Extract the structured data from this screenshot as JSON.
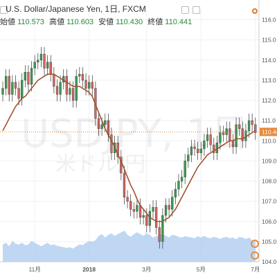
{
  "header": {
    "title": "U.S. Dollar/Japanese Yen, 1日, FXCM",
    "ohlc": [
      {
        "key": "始値",
        "value": "110.573"
      },
      {
        "key": "高値",
        "value": "110.603"
      },
      {
        "key": "安値",
        "value": "110.430"
      },
      {
        "key": "終値",
        "value": "110.441"
      }
    ]
  },
  "watermark": {
    "symbol": "USDJPY, 1日",
    "name": "米ドル/円"
  },
  "colors": {
    "up": "#3c9a52",
    "down": "#d46460",
    "ma": "#a0522d",
    "volume": "#aac9ef",
    "last": "#e58a3a"
  },
  "chart_data": {
    "type": "candlestick",
    "y_range": [
      104,
      116.5
    ],
    "y_ticks": [
      "116.0",
      "115.0",
      "114.0",
      "113.0",
      "112.0",
      "111.0",
      "110.0",
      "109.0",
      "108.0",
      "107.0",
      "106.0",
      "105.0",
      "104.0"
    ],
    "x_ticks": [
      {
        "label": "11月",
        "i": 10
      },
      {
        "label": "2018",
        "i": 27,
        "bold": true
      },
      {
        "label": "3月",
        "i": 45
      },
      {
        "label": "5月",
        "i": 62
      },
      {
        "label": "7月",
        "i": 79
      }
    ],
    "last_price": "110.441",
    "close": [
      112.6,
      113.2,
      112.3,
      112.9,
      112.6,
      112.1,
      113.0,
      113.4,
      112.8,
      113.6,
      113.9,
      114.0,
      114.3,
      113.6,
      113.9,
      113.3,
      112.7,
      112.3,
      112.9,
      113.2,
      112.3,
      112.6,
      112.0,
      113.2,
      113.3,
      113.0,
      112.6,
      112.9,
      112.6,
      111.1,
      110.6,
      110.8,
      111.0,
      110.3,
      109.4,
      109.9,
      109.2,
      108.4,
      107.2,
      107.0,
      106.6,
      106.5,
      106.8,
      106.2,
      106.3,
      105.8,
      106.5,
      106.7,
      105.7,
      105.0,
      106.3,
      106.8,
      106.6,
      107.2,
      107.6,
      108.0,
      108.2,
      109.0,
      109.3,
      109.7,
      109.6,
      109.4,
      109.6,
      110.0,
      110.3,
      109.8,
      109.4,
      109.9,
      110.4,
      110.3,
      110.6,
      110.0,
      109.7,
      110.8,
      110.6,
      110.0,
      110.5,
      111.0,
      110.8,
      110.4
    ],
    "ma": [
      110.5,
      110.8,
      111.1,
      111.4,
      111.7,
      111.9,
      112.1,
      112.2,
      112.4,
      112.6,
      112.8,
      113.0,
      113.1,
      113.2,
      113.3,
      113.3,
      113.3,
      113.2,
      113.1,
      113.0,
      112.9,
      112.8,
      112.7,
      112.7,
      112.7,
      112.6,
      112.5,
      112.4,
      112.2,
      111.8,
      111.4,
      111.0,
      110.6,
      110.3,
      110.0,
      109.7,
      109.3,
      109.0,
      108.6,
      108.2,
      107.8,
      107.5,
      107.1,
      106.8,
      106.6,
      106.4,
      106.2,
      106.1,
      106.0,
      106.0,
      106.0,
      106.1,
      106.2,
      106.4,
      106.6,
      106.9,
      107.2,
      107.5,
      107.8,
      108.1,
      108.4,
      108.7,
      108.9,
      109.1,
      109.3,
      109.4,
      109.5,
      109.6,
      109.7,
      109.8,
      109.9,
      110.0,
      110.0,
      110.1,
      110.1,
      110.1,
      110.2,
      110.3,
      110.4,
      110.5
    ],
    "volume": [
      0.5,
      0.55,
      0.45,
      0.6,
      0.52,
      0.5,
      0.55,
      0.48,
      0.5,
      0.6,
      0.55,
      0.5,
      0.45,
      0.5,
      0.55,
      0.48,
      0.5,
      0.46,
      0.44,
      0.42,
      0.4,
      0.42,
      0.38,
      0.45,
      0.5,
      0.48,
      0.55,
      0.6,
      0.58,
      0.62,
      0.75,
      0.8,
      0.7,
      0.78,
      0.82,
      0.75,
      0.8,
      0.85,
      0.9,
      0.78,
      0.72,
      0.8,
      0.85,
      0.8,
      0.75,
      0.82,
      0.78,
      0.7,
      0.74,
      0.78,
      0.8,
      0.75,
      0.7,
      0.78,
      0.76,
      0.72,
      0.7,
      0.74,
      0.72,
      0.7,
      0.68,
      0.74,
      0.7,
      0.75,
      0.7,
      0.68,
      0.72,
      0.7,
      0.66,
      0.7,
      0.72,
      0.68,
      0.7,
      0.65,
      0.72,
      0.7,
      0.66,
      0.7,
      0.62,
      0.6
    ]
  }
}
